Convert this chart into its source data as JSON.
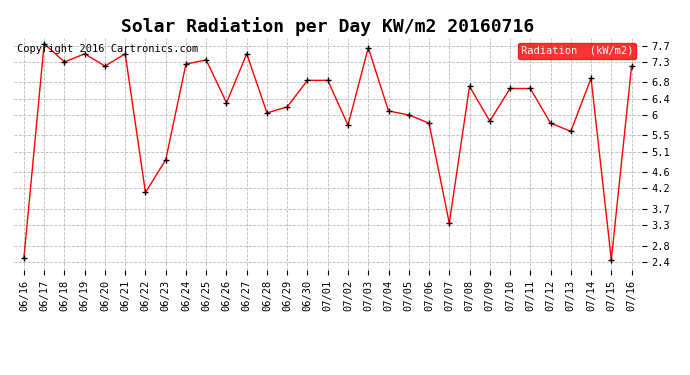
{
  "title": "Solar Radiation per Day KW/m2 20160716",
  "copyright_text": "Copyright 2016 Cartronics.com",
  "legend_label": "Radiation  (kW/m2)",
  "dates": [
    "06/16",
    "06/17",
    "06/18",
    "06/19",
    "06/20",
    "06/21",
    "06/22",
    "06/23",
    "06/24",
    "06/25",
    "06/26",
    "06/27",
    "06/28",
    "06/29",
    "06/30",
    "07/01",
    "07/02",
    "07/03",
    "07/04",
    "07/05",
    "07/06",
    "07/07",
    "07/08",
    "07/09",
    "07/10",
    "07/11",
    "07/12",
    "07/13",
    "07/14",
    "07/15",
    "07/16"
  ],
  "values": [
    2.5,
    7.75,
    7.3,
    7.5,
    7.2,
    7.5,
    4.1,
    4.9,
    7.25,
    7.35,
    6.3,
    7.5,
    6.05,
    6.2,
    6.85,
    6.85,
    5.75,
    7.65,
    6.1,
    6.0,
    5.8,
    3.35,
    6.7,
    5.85,
    6.65,
    6.65,
    5.8,
    5.6,
    6.9,
    2.45,
    7.2
  ],
  "line_color": "red",
  "marker_color": "black",
  "background_color": "#ffffff",
  "grid_color": "#bbbbbb",
  "legend_bg": "red",
  "legend_text_color": "white",
  "ylim_min": 2.2,
  "ylim_max": 7.9,
  "yticks": [
    2.4,
    2.8,
    3.3,
    3.7,
    4.2,
    4.6,
    5.1,
    5.5,
    6.0,
    6.4,
    6.8,
    7.3,
    7.7
  ],
  "title_fontsize": 13,
  "tick_fontsize": 7.5,
  "copyright_fontsize": 7.5
}
